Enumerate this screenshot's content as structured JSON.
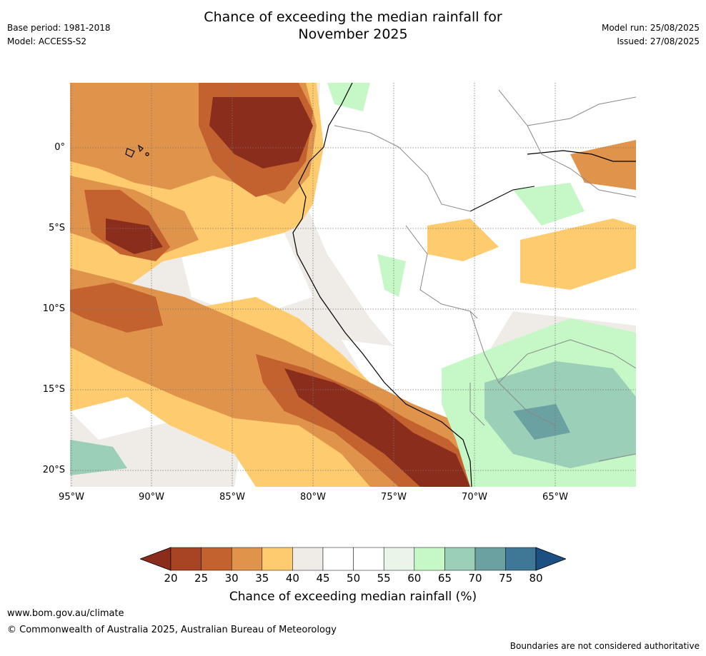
{
  "header": {
    "title_line1": "Chance of exceeding the median rainfall for",
    "title_line2": "November 2025",
    "base_period": "Base period: 1981-2018",
    "model": "Model: ACCESS-S2",
    "model_run": "Model run: 25/08/2025",
    "issued": "Issued: 27/08/2025"
  },
  "map": {
    "lat_labels": [
      "0°",
      "5°S",
      "10°S",
      "15°S",
      "20°S"
    ],
    "lon_labels": [
      "95°W",
      "90°W",
      "85°W",
      "80°W",
      "75°W",
      "70°W",
      "65°W"
    ],
    "colors": {
      "c15_20": "#8b2d1c",
      "c20_25": "#a84324",
      "c25_30": "#c4622f",
      "c30_35": "#e0934a",
      "c35_40": "#fecb6e",
      "c40_45": "#efebe7",
      "c45_55": "#ffffff",
      "c55_60": "#eaf5ea",
      "c60_65": "#c6f8c7",
      "c65_70": "#9bcfb7",
      "c70_75": "#6ba1a1",
      "c75_80": "#3e7896",
      "c80_plus": "#1c4f82"
    }
  },
  "colorbar": {
    "ticks": [
      "20",
      "25",
      "30",
      "35",
      "40",
      "45",
      "50",
      "55",
      "60",
      "65",
      "70",
      "75",
      "80"
    ],
    "title": "Chance of exceeding median rainfall (%)"
  },
  "footer": {
    "url": "www.bom.gov.au/climate",
    "copyright": "© Commonwealth of Australia 2025, Australian Bureau of Meteorology",
    "disclaimer": "Boundaries are not considered authoritative"
  }
}
